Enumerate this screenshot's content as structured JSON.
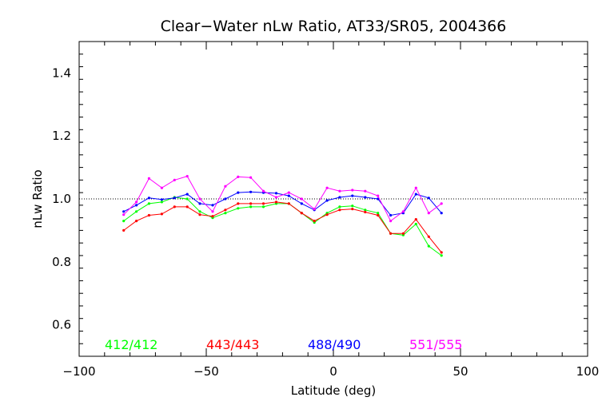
{
  "chart_data": {
    "type": "line",
    "title": "Clear−Water nLw Ratio, AT33/SR05, 2004366",
    "xlabel": "Latitude (deg)",
    "ylabel": "nLw Ratio",
    "xlim": [
      -100,
      100
    ],
    "ylim": [
      0.5,
      1.5
    ],
    "x_ticks": [
      -100,
      -50,
      0,
      50,
      100
    ],
    "x_tick_labels": [
      "−100",
      "−50",
      "0",
      "50",
      "100"
    ],
    "y_ticks": [
      0.6,
      0.8,
      1.0,
      1.2,
      1.4
    ],
    "y_tick_labels": [
      "0.6",
      "0.8",
      "1.0",
      "1.2",
      "1.4"
    ],
    "reference_line": 1.0,
    "grid": false,
    "legend_placement": "bottom inside plot",
    "x": [
      -82.5,
      -77.5,
      -72.5,
      -67.5,
      -62.5,
      -57.5,
      -52.5,
      -47.5,
      -42.5,
      -37.5,
      -32.5,
      -27.5,
      -22.5,
      -17.5,
      -12.5,
      -7.5,
      -2.5,
      2.5,
      7.5,
      12.5,
      17.5,
      22.5,
      27.5,
      32.5,
      37.5,
      42.5
    ],
    "series": [
      {
        "name": "412/412",
        "color": "#00ff00",
        "values": [
          0.93,
          0.96,
          0.985,
          0.99,
          1.005,
          1.0,
          0.96,
          0.94,
          0.955,
          0.97,
          0.975,
          0.975,
          0.985,
          0.985,
          0.955,
          0.925,
          0.955,
          0.975,
          0.978,
          0.965,
          0.955,
          0.89,
          0.885,
          0.92,
          0.85,
          0.82
        ]
      },
      {
        "name": "443/443",
        "color": "#ff0000",
        "values": [
          0.9,
          0.93,
          0.948,
          0.952,
          0.975,
          0.975,
          0.95,
          0.945,
          0.965,
          0.985,
          0.985,
          0.985,
          0.99,
          0.985,
          0.955,
          0.93,
          0.95,
          0.965,
          0.968,
          0.958,
          0.948,
          0.89,
          0.89,
          0.935,
          0.88,
          0.83
        ]
      },
      {
        "name": "488/490",
        "color": "#0000ff",
        "values": [
          0.96,
          0.98,
          1.003,
          0.998,
          1.003,
          1.015,
          0.985,
          0.98,
          1.0,
          1.02,
          1.022,
          1.02,
          1.018,
          1.01,
          0.985,
          0.965,
          0.995,
          1.005,
          1.01,
          1.005,
          1.0,
          0.948,
          0.955,
          1.015,
          1.003,
          0.955
        ]
      },
      {
        "name": "551/555",
        "color": "#ff00ff",
        "values": [
          0.95,
          0.99,
          1.065,
          1.035,
          1.06,
          1.072,
          1.0,
          0.96,
          1.04,
          1.07,
          1.068,
          1.025,
          1.005,
          1.02,
          1.0,
          0.968,
          1.035,
          1.025,
          1.028,
          1.025,
          1.01,
          0.93,
          0.96,
          1.035,
          0.955,
          0.985
        ]
      }
    ]
  }
}
